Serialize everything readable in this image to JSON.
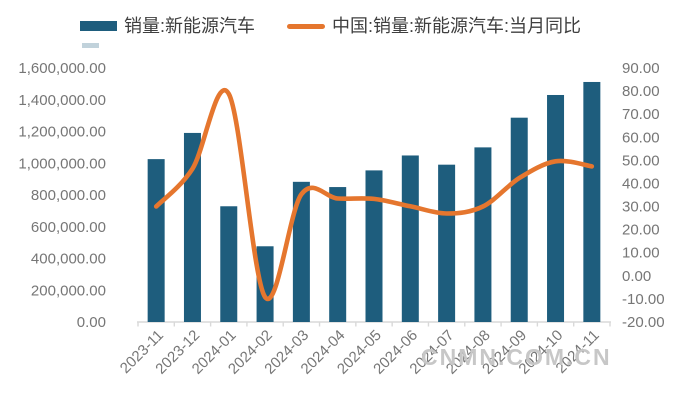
{
  "watermark": {
    "text": "CNMN.COM.CN"
  },
  "colors": {
    "bar": "#1e5d7d",
    "line": "#e5762e",
    "axis_text": "#767676",
    "axis_line": "#d9d9d9",
    "legend_text": "#3f3f3f",
    "watermark": "#c7c7c7"
  },
  "chart_data": {
    "type": "bar",
    "subtype": "combo-bar-line-dual-axis",
    "title": "",
    "legend_position": "top",
    "grid": false,
    "categories": [
      "2023-11",
      "2023-12",
      "2024-01",
      "2024-02",
      "2024-03",
      "2024-04",
      "2024-05",
      "2024-06",
      "2024-07",
      "2024-08",
      "2024-09",
      "2024-10",
      "2024-11"
    ],
    "series": [
      {
        "name": "销量:新能源汽车",
        "type": "bar",
        "axis": "left",
        "color": "#1e5d7d",
        "values": [
          1026000,
          1191000,
          729000,
          477000,
          883000,
          850000,
          955000,
          1049000,
          991000,
          1100000,
          1287000,
          1430000,
          1512000
        ]
      },
      {
        "name": "中国:销量:新能源汽车:当月同比",
        "type": "line",
        "axis": "right",
        "color": "#e5762e",
        "values": [
          30.0,
          46.4,
          78.8,
          -9.2,
          35.3,
          33.5,
          33.3,
          30.1,
          27.0,
          30.0,
          42.3,
          49.6,
          47.4
        ]
      }
    ],
    "left_axis": {
      "min": 0,
      "max": 1600000,
      "step": 200000,
      "tick_labels": [
        "1,600,000.00",
        "1,400,000.00",
        "1,200,000.00",
        "1,000,000.00",
        "800,000.00",
        "600,000.00",
        "400,000.00",
        "200,000.00",
        "0.00"
      ]
    },
    "right_axis": {
      "min": -20,
      "max": 90,
      "step": 10,
      "tick_labels": [
        "90.00",
        "80.00",
        "70.00",
        "60.00",
        "50.00",
        "40.00",
        "30.00",
        "20.00",
        "10.00",
        "0.00",
        "-10.00",
        "-20.00"
      ]
    }
  }
}
